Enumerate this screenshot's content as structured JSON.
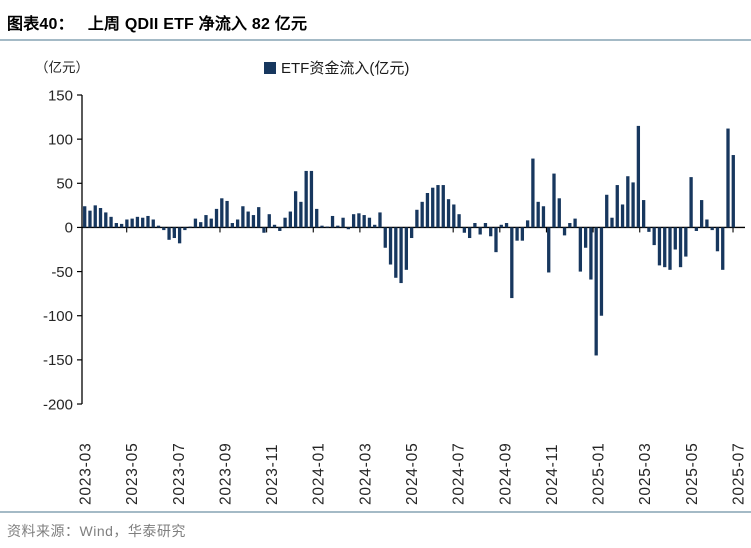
{
  "header": {
    "figure_label": "图表40：",
    "title": "上周 QDII ETF 净流入 82 亿元"
  },
  "axis_unit": "（亿元）",
  "legend": {
    "label": "ETF资金流入(亿元)",
    "swatch_color": "#17375E"
  },
  "source": "资料来源：Wind，华泰研究",
  "colors": {
    "bar": "#17375E",
    "axis": "#000000",
    "axis_text": "#262626",
    "rule_line": "#A4BAC6",
    "source_text": "#7f7f7f"
  },
  "chart_data": {
    "type": "bar",
    "title": "上周 QDII ETF 净流入 82 亿元",
    "ylabel": "（亿元）",
    "legend_entries": [
      "ETF资金流入(亿元)"
    ],
    "legend_position": "top",
    "grid": false,
    "bar_color": "#17375E",
    "ylim": [
      -200,
      150
    ],
    "ytick_step": 50,
    "yticks": [
      150,
      100,
      50,
      0,
      -50,
      -100,
      -150,
      -200
    ],
    "x_tick_labels": [
      "2023-03",
      "2023-05",
      "2023-07",
      "2023-09",
      "2023-11",
      "2024-01",
      "2024-03",
      "2024-05",
      "2024-07",
      "2024-09",
      "2024-11",
      "2025-01",
      "2025-03",
      "2025-05",
      "2025-07"
    ],
    "values": [
      24,
      19,
      25,
      22,
      17,
      12,
      5,
      4,
      9,
      10,
      12,
      11,
      13,
      9,
      2,
      -3,
      -14,
      -12,
      -18,
      -3,
      1,
      10,
      6,
      14,
      10,
      21,
      33,
      30,
      5,
      9,
      24,
      18,
      14,
      23,
      -6,
      15,
      3,
      -4,
      11,
      18,
      41,
      29,
      64,
      64,
      21,
      2,
      1,
      13,
      2,
      11,
      -2,
      15,
      16,
      14,
      11,
      3,
      17,
      -23,
      -42,
      -57,
      -63,
      -48,
      -12,
      20,
      29,
      39,
      45,
      48,
      48,
      32,
      26,
      15,
      -6,
      -12,
      5,
      -8,
      5,
      -10,
      -28,
      3,
      5,
      -80,
      -15,
      -15,
      8,
      78,
      29,
      24,
      -51,
      61,
      33,
      -9,
      5,
      10,
      -50,
      -23,
      -59,
      -145,
      -100,
      37,
      11,
      48,
      26,
      58,
      51,
      115,
      31,
      -5,
      -20,
      -43,
      -45,
      -48,
      -25,
      -45,
      -33,
      57,
      -4,
      31,
      9,
      -3,
      -27,
      -48,
      112,
      82
    ]
  }
}
